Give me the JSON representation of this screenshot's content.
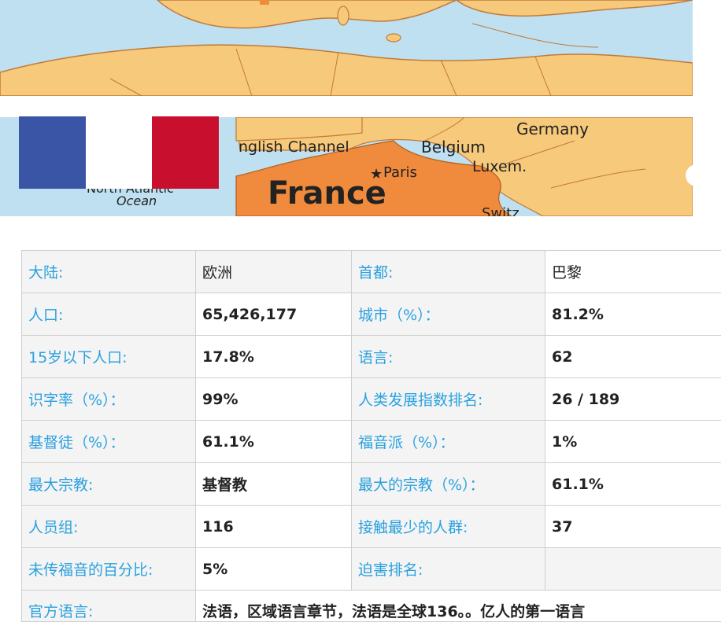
{
  "map": {
    "labels": {
      "channel": "nglish Channel",
      "ocean_top": "North Atlantic",
      "ocean_bottom": "Ocean",
      "belgium": "Belgium",
      "germany": "Germany",
      "paris": "Paris",
      "luxem": "Luxem.",
      "france": "France",
      "switz": "Switz"
    },
    "colors": {
      "sea": "#bfe0f0",
      "land": "#f7c97a",
      "france": "#f08a3c",
      "border": "#c07a3a"
    }
  },
  "flag": {
    "colors": [
      "#3a55a5",
      "#ffffff",
      "#c8102e"
    ]
  },
  "table": {
    "rows": [
      [
        "大陆:",
        "欧洲",
        "首都:",
        "巴黎"
      ],
      [
        "人口:",
        "65,426,177",
        "城市（%）：",
        "81.2%"
      ],
      [
        "15岁以下人口:",
        "17.8%",
        "语言:",
        "62"
      ],
      [
        "识字率（%）：",
        "99%",
        "人类发展指数排名:",
        "26 / 189"
      ],
      [
        "基督徒（%）：",
        "61.1%",
        "福音派（%）：",
        "1%"
      ],
      [
        "最大宗教:",
        "基督教",
        "最大的宗教（%）：",
        "61.1%"
      ],
      [
        "人员组:",
        "116",
        "接触最少的人群:",
        "37"
      ],
      [
        "未传福音的百分比:",
        "5%",
        "迫害排名:",
        ""
      ]
    ],
    "last_row": {
      "label": "官方语言:",
      "value": "法语，区域语言章节，法语是全球136。。亿人的第一语言"
    }
  }
}
